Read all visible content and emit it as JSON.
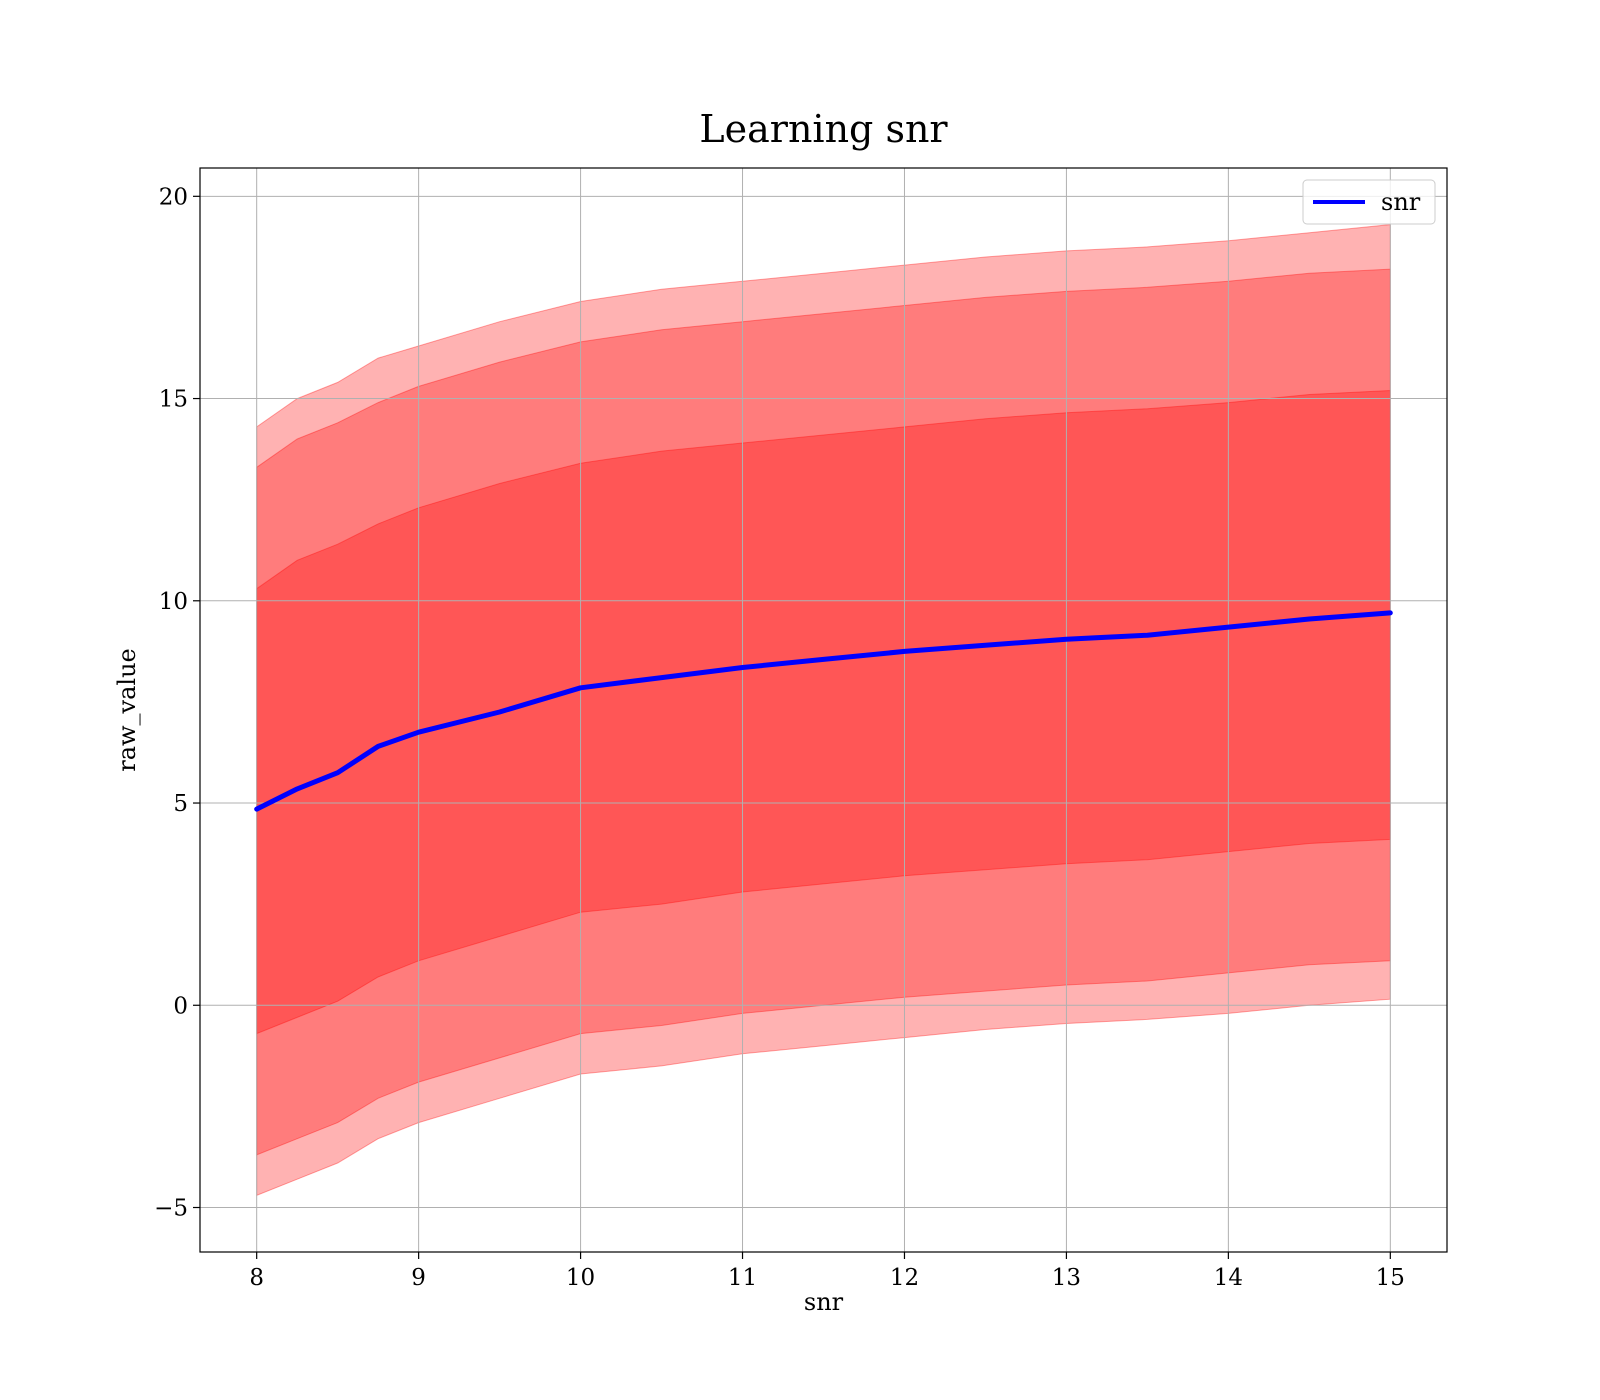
{
  "chart_data": {
    "type": "area",
    "title": "Learning snr",
    "xlabel": "snr",
    "ylabel": "raw_value",
    "xlim": [
      7.65,
      15.35
    ],
    "ylim": [
      -6.1,
      20.7
    ],
    "xticks": [
      8,
      9,
      10,
      11,
      12,
      13,
      14,
      15
    ],
    "yticks": [
      -5,
      0,
      5,
      10,
      15,
      20
    ],
    "xtick_labels": [
      "8",
      "9",
      "10",
      "11",
      "12",
      "13",
      "14",
      "15"
    ],
    "ytick_labels": [
      "−5",
      "0",
      "5",
      "10",
      "15",
      "20"
    ],
    "grid": true,
    "legend": {
      "position": "top-right",
      "entries": [
        "snr"
      ]
    },
    "colors": {
      "mean_line": "#0000ff",
      "band_fill": "#ff0000",
      "grid": "#b0b0b0"
    },
    "x": [
      8.0,
      8.25,
      8.5,
      8.75,
      9.0,
      9.5,
      10.0,
      10.5,
      11.0,
      11.5,
      12.0,
      12.5,
      13.0,
      13.5,
      14.0,
      14.5,
      15.0
    ],
    "series": [
      {
        "name": "snr",
        "role": "mean",
        "values": [
          4.85,
          5.35,
          5.75,
          6.4,
          6.75,
          7.25,
          7.85,
          8.1,
          8.35,
          8.55,
          8.75,
          8.9,
          9.05,
          9.15,
          9.35,
          9.55,
          9.7
        ]
      }
    ],
    "bands": [
      {
        "opacity": 0.3,
        "upper": [
          14.3,
          15.0,
          15.4,
          16.0,
          16.3,
          16.9,
          17.4,
          17.7,
          17.9,
          18.1,
          18.3,
          18.5,
          18.65,
          18.75,
          18.9,
          19.1,
          19.3
        ],
        "lower": [
          -4.7,
          -4.3,
          -3.9,
          -3.3,
          -2.9,
          -2.3,
          -1.7,
          -1.5,
          -1.2,
          -1.0,
          -0.8,
          -0.6,
          -0.45,
          -0.35,
          -0.2,
          0.0,
          0.15
        ]
      },
      {
        "opacity": 0.3,
        "upper": [
          13.3,
          14.0,
          14.4,
          14.9,
          15.3,
          15.9,
          16.4,
          16.7,
          16.9,
          17.1,
          17.3,
          17.5,
          17.65,
          17.75,
          17.9,
          18.1,
          18.2
        ],
        "lower": [
          -3.7,
          -3.3,
          -2.9,
          -2.3,
          -1.9,
          -1.3,
          -0.7,
          -0.5,
          -0.2,
          0.0,
          0.2,
          0.35,
          0.5,
          0.6,
          0.8,
          1.0,
          1.1
        ]
      },
      {
        "opacity": 0.3,
        "upper": [
          10.3,
          11.0,
          11.4,
          11.9,
          12.3,
          12.9,
          13.4,
          13.7,
          13.9,
          14.1,
          14.3,
          14.5,
          14.65,
          14.75,
          14.9,
          15.1,
          15.2
        ],
        "lower": [
          -0.7,
          -0.3,
          0.1,
          0.7,
          1.1,
          1.7,
          2.3,
          2.5,
          2.8,
          3.0,
          3.2,
          3.35,
          3.5,
          3.6,
          3.8,
          4.0,
          4.1
        ]
      }
    ]
  }
}
